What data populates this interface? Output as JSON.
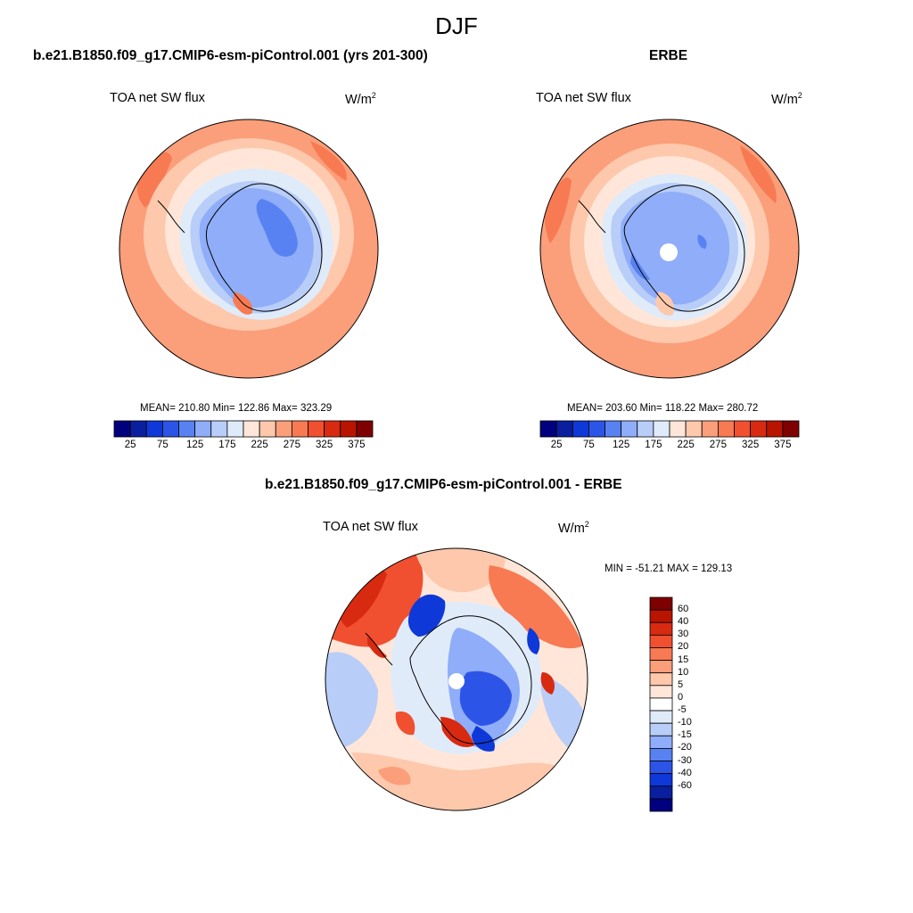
{
  "title": "DJF",
  "colors": {
    "abs_scale": [
      "#00007f",
      "#0a1f9e",
      "#0f38d8",
      "#2c55e8",
      "#5882f2",
      "#8fadf8",
      "#b8cdf8",
      "#e0ebfa",
      "#ffe6d8",
      "#fdc8ac",
      "#fb9e7a",
      "#f77a52",
      "#f05030",
      "#d82a10",
      "#b81400",
      "#7f0000"
    ],
    "diff_scale": [
      "#00007f",
      "#0a1f9e",
      "#0f38d8",
      "#2c55e8",
      "#5882f2",
      "#8fadf8",
      "#b8cdf8",
      "#e0ebfa",
      "#ffffff",
      "#ffe6d8",
      "#fdc8ac",
      "#fb9e7a",
      "#f77a52",
      "#f05030",
      "#d82a10",
      "#b81400",
      "#7f0000"
    ]
  },
  "panels": [
    {
      "title": "b.e21.B1850.f09_g17.CMIP6-esm-piControl.001 (yrs 201-300)",
      "variable": "TOA net SW flux",
      "units": "W/m",
      "units_sup": "2",
      "stats": "MEAN= 210.80  Min= 122.86  Max= 323.29",
      "colorbar_ticks": [
        "25",
        "75",
        "125",
        "175",
        "225",
        "275",
        "325",
        "375"
      ]
    },
    {
      "title": "ERBE",
      "variable": "TOA net SW flux",
      "units": "W/m",
      "units_sup": "2",
      "stats": "MEAN= 203.60  Min= 118.22  Max= 280.72",
      "colorbar_ticks": [
        "25",
        "75",
        "125",
        "175",
        "225",
        "275",
        "325",
        "375"
      ]
    },
    {
      "title": "b.e21.B1850.f09_g17.CMIP6-esm-piControl.001 - ERBE",
      "variable": "TOA net SW flux",
      "units": "W/m",
      "units_sup": "2",
      "stats": "MIN = -51.21 MAX = 129.13",
      "colorbar_ticks": [
        "60",
        "40",
        "30",
        "20",
        "15",
        "10",
        "5",
        "0",
        "-5",
        "-10",
        "-15",
        "-20",
        "-30",
        "-40",
        "-60"
      ]
    }
  ]
}
